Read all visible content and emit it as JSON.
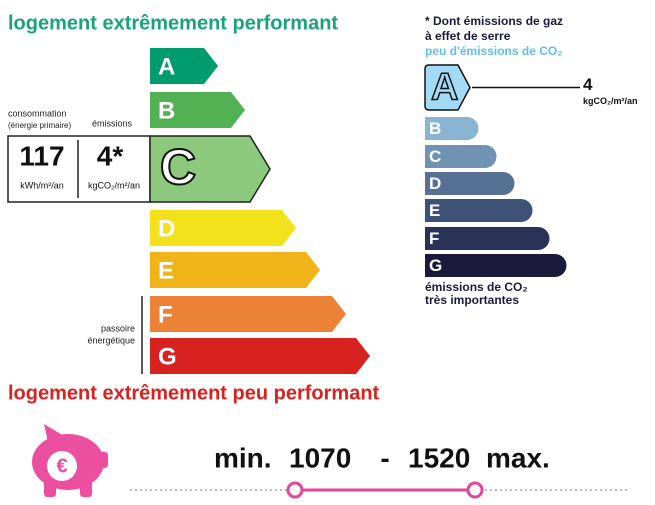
{
  "energy": {
    "top_label": "logement extrêmement performant",
    "bottom_label": "logement extrêmement peu performant",
    "current": "C",
    "classes": [
      {
        "letter": "A",
        "color": "#009c6d"
      },
      {
        "letter": "B",
        "color": "#52b153"
      },
      {
        "letter": "C",
        "color": "#8cc97c"
      },
      {
        "letter": "D",
        "color": "#f3e11b"
      },
      {
        "letter": "E",
        "color": "#f0b419"
      },
      {
        "letter": "F",
        "color": "#eb8236"
      },
      {
        "letter": "G",
        "color": "#d7221f"
      }
    ],
    "consumption": {
      "label": "consommation",
      "sublabel": "(énergie primaire)",
      "value": 117,
      "unit": "kWh/m²/an"
    },
    "emissions": {
      "label": "émissions",
      "value": "4*",
      "unit": "kgCO₂/m²/an"
    },
    "passoire": [
      "passoire",
      "énergétique"
    ]
  },
  "ghg": {
    "note": [
      "* Dont émissions de gaz",
      "à effet de serre"
    ],
    "top_label": "peu d'émissions de CO₂",
    "bottom_label": [
      "émissions de CO₂",
      "très importantes"
    ],
    "current": "A",
    "value": 4,
    "unit": "kgCO₂/m²/an",
    "classes": [
      {
        "letter": "A",
        "color": "#a3dbf6"
      },
      {
        "letter": "B",
        "color": "#8ab5d2"
      },
      {
        "letter": "C",
        "color": "#7093b3"
      },
      {
        "letter": "D",
        "color": "#577194"
      },
      {
        "letter": "E",
        "color": "#3e5176"
      },
      {
        "letter": "F",
        "color": "#283357"
      },
      {
        "letter": "G",
        "color": "#1b1a3b"
      }
    ]
  },
  "cost": {
    "icon_symbol": "€",
    "min_label": "min.",
    "min": 1070,
    "separator": "-",
    "max": 1520,
    "max_label": "max."
  }
}
